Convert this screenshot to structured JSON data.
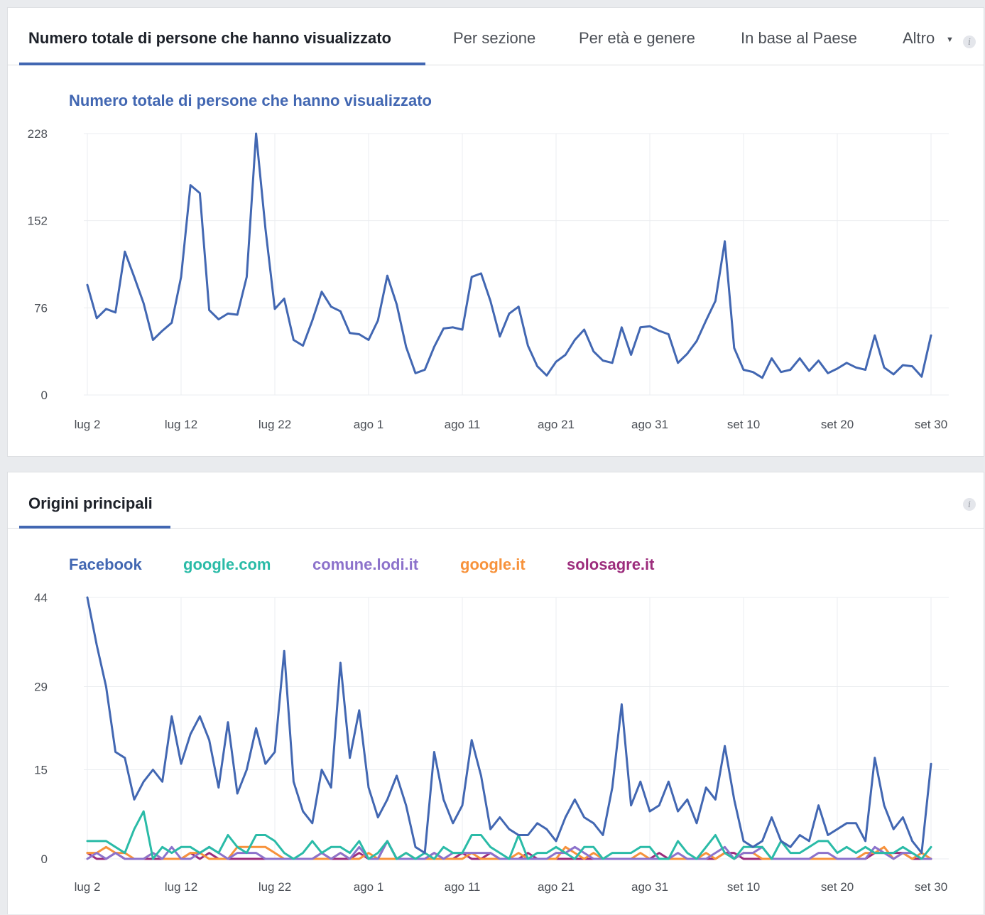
{
  "top_panel": {
    "tabs": [
      {
        "label": "Numero totale di persone che hanno visualizzato",
        "active": true
      },
      {
        "label": "Per sezione",
        "active": false
      },
      {
        "label": "Per età e genere",
        "active": false
      },
      {
        "label": "In base al Paese",
        "active": false
      },
      {
        "label": "Altro",
        "active": false
      }
    ],
    "info_icon": "info-icon",
    "chart_title": "Numero totale di persone che hanno visualizzato"
  },
  "bottom_panel": {
    "tabs": [
      {
        "label": "Origini principali",
        "active": true
      }
    ],
    "info_icon": "info-icon"
  },
  "colors": {
    "accent": "#4267b2",
    "Facebook": "#4267b2",
    "google.com": "#2abba7",
    "comune.lodi.it": "#8c72cb",
    "google.it": "#f7923b",
    "solosagre.it": "#9c2c7c",
    "grid": "#ebedf0"
  },
  "chart_data": [
    {
      "type": "line",
      "title": "Numero totale di persone che hanno visualizzato",
      "x_start": "2018-07-02",
      "x_tick_labels": [
        "lug 2",
        "lug 12",
        "lug 22",
        "ago 1",
        "ago 11",
        "ago 21",
        "ago 31",
        "set 10",
        "set 20",
        "set 30"
      ],
      "y_ticks": [
        0,
        76,
        152,
        228
      ],
      "ylim": [
        0,
        228
      ],
      "grid": true,
      "series": [
        {
          "name": "Numero totale di persone che hanno visualizzato",
          "color": "#4267b2",
          "values": [
            96,
            67,
            75,
            72,
            125,
            103,
            80,
            48,
            56,
            63,
            103,
            183,
            176,
            74,
            66,
            71,
            70,
            103,
            228,
            145,
            75,
            84,
            48,
            43,
            65,
            90,
            77,
            73,
            54,
            53,
            48,
            65,
            104,
            79,
            42,
            19,
            22,
            42,
            58,
            59,
            57,
            103,
            106,
            82,
            51,
            71,
            77,
            43,
            25,
            17,
            29,
            35,
            48,
            57,
            38,
            30,
            28,
            59,
            35,
            59,
            60,
            56,
            53,
            28,
            36,
            47,
            65,
            82,
            134,
            41,
            22,
            20,
            15,
            32,
            20,
            22,
            32,
            21,
            30,
            19,
            23,
            28,
            24,
            22,
            52,
            24,
            18,
            26,
            25,
            16,
            52
          ]
        }
      ]
    },
    {
      "type": "line",
      "x_start": "2018-07-02",
      "x_tick_labels": [
        "lug 2",
        "lug 12",
        "lug 22",
        "ago 1",
        "ago 11",
        "ago 21",
        "ago 31",
        "set 10",
        "set 20",
        "set 30"
      ],
      "y_ticks": [
        0,
        15,
        29,
        44
      ],
      "ylim": [
        0,
        44
      ],
      "grid": true,
      "legend_position": "top-left",
      "series": [
        {
          "name": "Facebook",
          "color": "#4267b2",
          "values": [
            44,
            36,
            29,
            18,
            17,
            10,
            13,
            15,
            13,
            24,
            16,
            21,
            24,
            20,
            12,
            23,
            11,
            15,
            22,
            16,
            18,
            35,
            13,
            8,
            6,
            15,
            12,
            33,
            17,
            25,
            12,
            7,
            10,
            14,
            9,
            2,
            1,
            18,
            10,
            6,
            9,
            20,
            14,
            5,
            7,
            5,
            4,
            4,
            6,
            5,
            3,
            7,
            10,
            7,
            6,
            4,
            12,
            26,
            9,
            13,
            8,
            9,
            13,
            8,
            10,
            6,
            12,
            10,
            19,
            10,
            3,
            2,
            3,
            7,
            3,
            2,
            4,
            3,
            9,
            4,
            5,
            6,
            6,
            3,
            17,
            9,
            5,
            7,
            3,
            1,
            16
          ]
        },
        {
          "name": "google.com",
          "color": "#2abba7",
          "values": [
            3,
            3,
            3,
            2,
            1,
            5,
            8,
            0,
            2,
            1,
            2,
            2,
            1,
            2,
            1,
            4,
            2,
            1,
            4,
            4,
            3,
            1,
            0,
            1,
            3,
            1,
            2,
            2,
            1,
            3,
            0,
            1,
            3,
            0,
            1,
            0,
            1,
            0,
            2,
            1,
            1,
            4,
            4,
            2,
            1,
            0,
            4,
            0,
            1,
            1,
            2,
            1,
            0,
            2,
            2,
            0,
            1,
            1,
            1,
            2,
            2,
            0,
            0,
            3,
            1,
            0,
            2,
            4,
            1,
            0,
            2,
            2,
            2,
            0,
            3,
            1,
            1,
            2,
            3,
            3,
            1,
            2,
            1,
            2,
            1,
            1,
            1,
            2,
            1,
            0,
            2
          ]
        },
        {
          "name": "comune.lodi.it",
          "color": "#8c72cb",
          "values": [
            0,
            1,
            0,
            1,
            0,
            0,
            0,
            1,
            0,
            2,
            0,
            0,
            1,
            2,
            1,
            0,
            1,
            1,
            1,
            0,
            0,
            0,
            0,
            0,
            0,
            1,
            0,
            1,
            0,
            2,
            0,
            0,
            3,
            0,
            0,
            0,
            0,
            1,
            0,
            1,
            1,
            1,
            1,
            1,
            0,
            0,
            0,
            0,
            0,
            0,
            1,
            1,
            2,
            1,
            0,
            0,
            0,
            0,
            0,
            0,
            0,
            0,
            0,
            1,
            0,
            0,
            0,
            1,
            2,
            0,
            1,
            1,
            2,
            0,
            0,
            0,
            0,
            0,
            1,
            1,
            0,
            0,
            0,
            0,
            2,
            1,
            0,
            1,
            1,
            0,
            0
          ]
        },
        {
          "name": "google.it",
          "color": "#f7923b",
          "values": [
            1,
            1,
            2,
            1,
            1,
            0,
            0,
            1,
            0,
            0,
            0,
            1,
            1,
            0,
            0,
            0,
            2,
            2,
            2,
            2,
            1,
            0,
            0,
            0,
            0,
            0,
            0,
            1,
            0,
            0,
            1,
            0,
            0,
            0,
            1,
            0,
            0,
            0,
            0,
            0,
            0,
            1,
            0,
            0,
            0,
            0,
            1,
            0,
            0,
            0,
            0,
            2,
            1,
            0,
            1,
            0,
            0,
            0,
            0,
            1,
            0,
            0,
            0,
            0,
            0,
            0,
            1,
            0,
            1,
            0,
            1,
            1,
            0,
            0,
            0,
            0,
            0,
            0,
            0,
            0,
            0,
            0,
            0,
            1,
            1,
            2,
            0,
            1,
            0,
            1,
            0
          ]
        },
        {
          "name": "solosagre.it",
          "color": "#9c2c7c",
          "values": [
            1,
            0,
            0,
            1,
            0,
            0,
            0,
            0,
            0,
            0,
            0,
            1,
            0,
            1,
            0,
            0,
            0,
            0,
            0,
            0,
            0,
            0,
            0,
            0,
            0,
            1,
            0,
            0,
            0,
            1,
            0,
            0,
            3,
            0,
            0,
            0,
            0,
            1,
            0,
            0,
            1,
            0,
            0,
            1,
            0,
            0,
            0,
            1,
            0,
            0,
            0,
            0,
            0,
            0,
            0,
            0,
            0,
            0,
            0,
            0,
            0,
            1,
            0,
            0,
            0,
            0,
            0,
            0,
            1,
            1,
            0,
            0,
            0,
            0,
            0,
            0,
            0,
            0,
            0,
            0,
            0,
            0,
            0,
            0,
            1,
            1,
            1,
            1,
            0,
            0,
            0
          ]
        }
      ]
    }
  ]
}
